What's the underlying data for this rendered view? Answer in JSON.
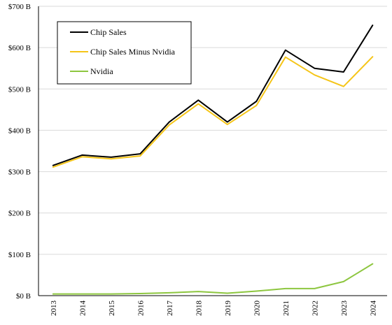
{
  "chart_data": {
    "type": "line",
    "title": "",
    "xlabel": "",
    "ylabel": "",
    "categories": [
      "2013",
      "2014",
      "2015",
      "2016",
      "2017",
      "2018",
      "2019",
      "2020",
      "2021",
      "2022",
      "2023",
      "2024"
    ],
    "ylim": [
      0,
      700
    ],
    "yticks": [
      {
        "value": 0,
        "label": "$0 B"
      },
      {
        "value": 100,
        "label": "$100 B"
      },
      {
        "value": 200,
        "label": "$200 B"
      },
      {
        "value": 300,
        "label": "$300 B"
      },
      {
        "value": 400,
        "label": "$400 B"
      },
      {
        "value": 500,
        "label": "$500 B"
      },
      {
        "value": 600,
        "label": "$600 B"
      },
      {
        "value": 700,
        "label": "$700 B"
      }
    ],
    "grid": true,
    "legend_position": "top-left",
    "series": [
      {
        "name": "Chip Sales",
        "color": "#000000",
        "values": [
          315,
          340,
          335,
          343,
          420,
          473,
          420,
          470,
          594,
          550,
          541,
          654
        ]
      },
      {
        "name": "Chip Sales Minus Nvidia",
        "color": "#f5c518",
        "values": [
          311,
          336,
          331,
          338,
          413,
          464,
          414,
          460,
          577,
          534,
          506,
          578
        ]
      },
      {
        "name": "Nvidia",
        "color": "#8dc63f",
        "values": [
          4,
          4,
          4,
          5,
          7,
          10,
          6,
          11,
          17,
          17,
          34,
          77
        ]
      }
    ]
  }
}
